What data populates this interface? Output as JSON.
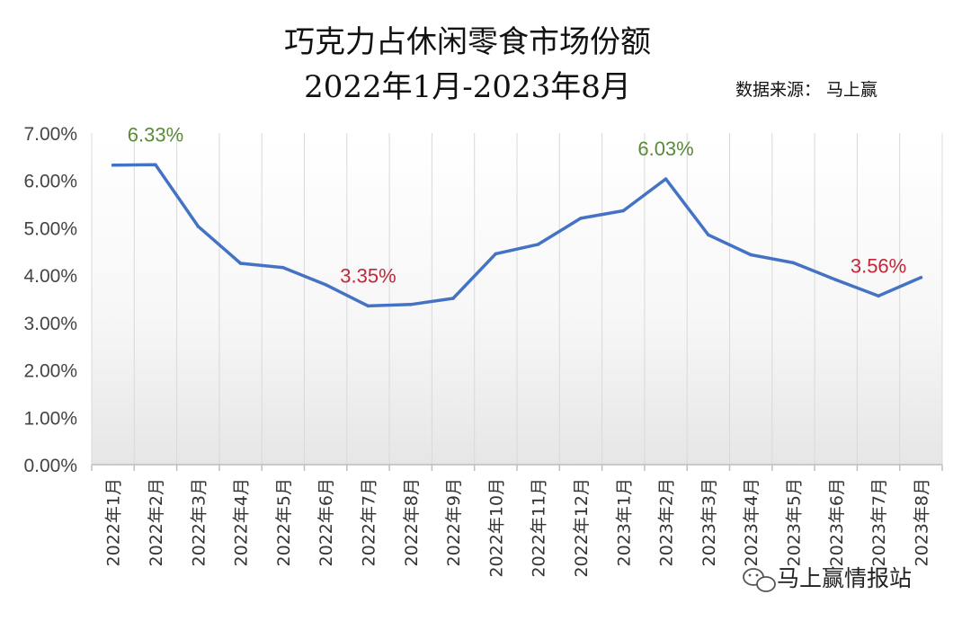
{
  "chart_data": {
    "type": "line",
    "title": "巧克力占休闲零食市场份额",
    "subtitle": "2022年1月-2023年8月",
    "source": "数据来源： 马上赢",
    "categories": [
      "2022年1月",
      "2022年2月",
      "2022年3月",
      "2022年4月",
      "2022年5月",
      "2022年6月",
      "2022年7月",
      "2022年8月",
      "2022年9月",
      "2022年10月",
      "2022年11月",
      "2022年12月",
      "2023年1月",
      "2023年2月",
      "2023年3月",
      "2023年4月",
      "2023年5月",
      "2023年6月",
      "2023年7月",
      "2023年8月"
    ],
    "series": [
      {
        "values": [
          6.32,
          6.33,
          5.03,
          4.25,
          4.16,
          3.8,
          3.35,
          3.38,
          3.51,
          4.45,
          4.65,
          5.2,
          5.36,
          6.03,
          4.85,
          4.43,
          4.26,
          3.9,
          3.56,
          3.95
        ]
      }
    ],
    "y_ticks": [
      "0.00%",
      "1.00%",
      "2.00%",
      "3.00%",
      "4.00%",
      "5.00%",
      "6.00%",
      "7.00%"
    ],
    "ylim": [
      0,
      7
    ],
    "annotations": [
      {
        "index": 1,
        "text": "6.33%",
        "color": "#5a8a3a"
      },
      {
        "index": 6,
        "text": "3.35%",
        "color": "#c0283a"
      },
      {
        "index": 13,
        "text": "6.03%",
        "color": "#5a8a3a"
      },
      {
        "index": 18,
        "text": "3.56%",
        "color": "#c0283a"
      }
    ],
    "line_color": "#4472c4",
    "grid": "vertical"
  },
  "watermark": {
    "text": "马上赢情报站",
    "icon": "wechat-icon"
  }
}
